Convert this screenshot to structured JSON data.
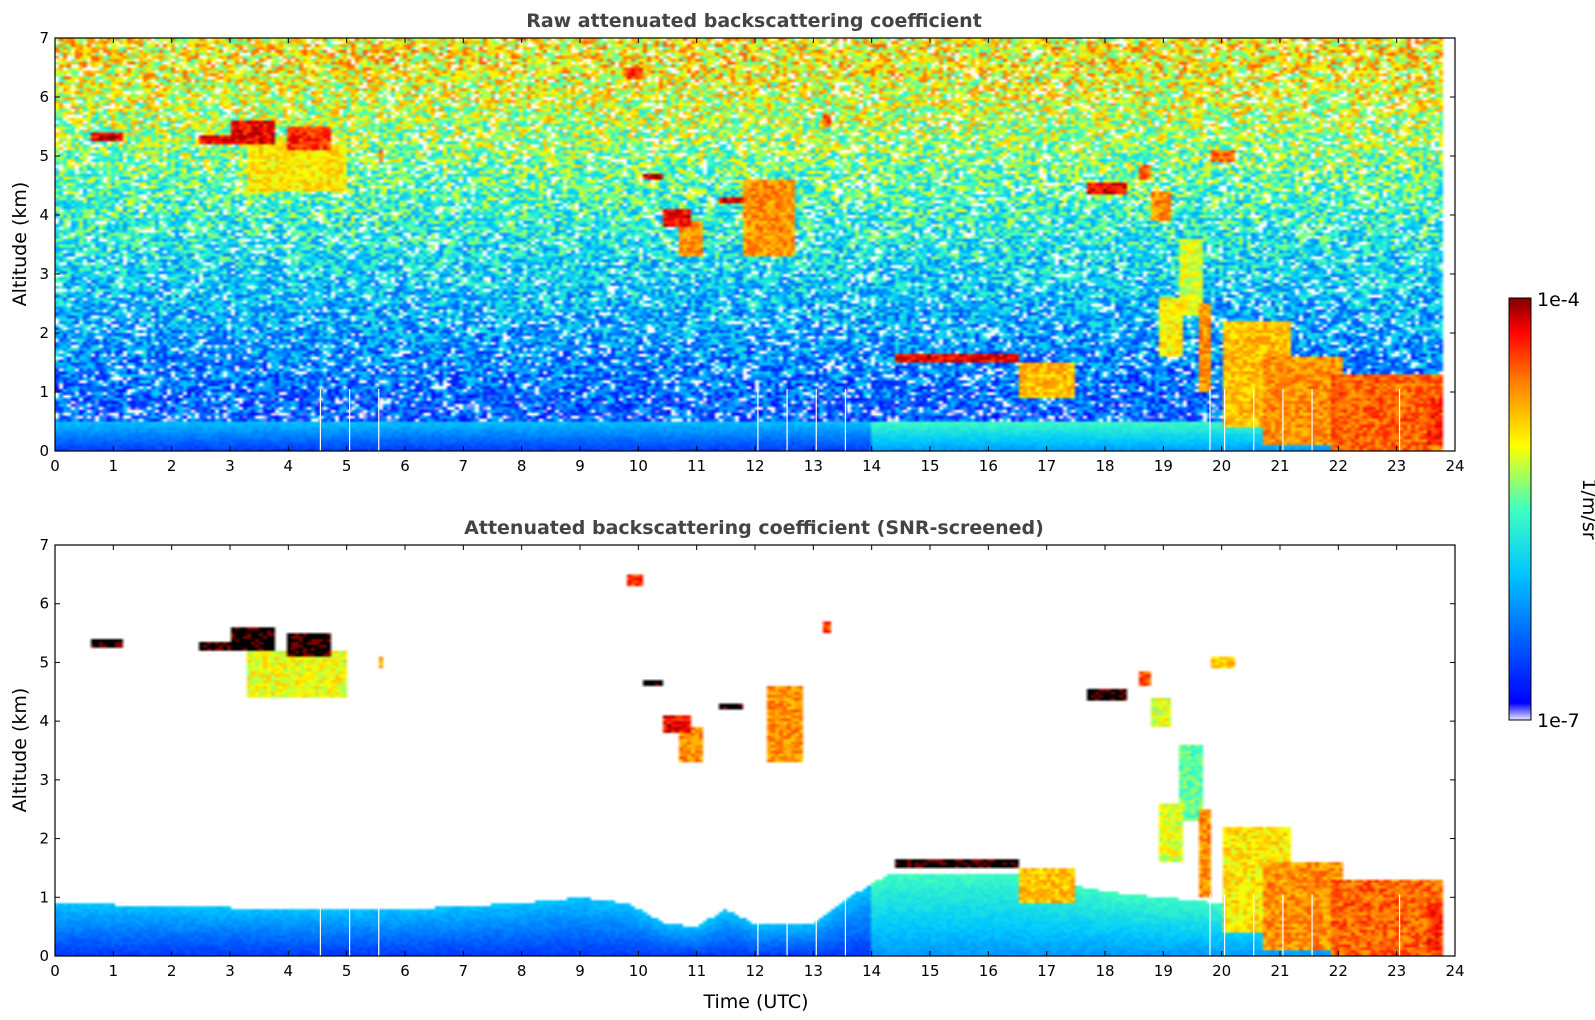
{
  "chart_data": [
    {
      "type": "heatmap",
      "title": "Raw attenuated backscattering coefficient",
      "xlabel": "",
      "ylabel": "Altitude (km)",
      "xlim": [
        0,
        24
      ],
      "ylim": [
        0,
        7
      ],
      "xticks": [
        "0",
        "1",
        "2",
        "3",
        "4",
        "5",
        "6",
        "7",
        "8",
        "9",
        "10",
        "11",
        "12",
        "13",
        "14",
        "15",
        "16",
        "17",
        "18",
        "19",
        "20",
        "21",
        "22",
        "23",
        "24"
      ],
      "yticks": [
        "0",
        "1",
        "2",
        "3",
        "4",
        "5",
        "6",
        "7"
      ],
      "data_ends_x": 23.8,
      "noise": true,
      "boundary_layer_top_km": 0.5,
      "gap_lines_x": [
        4.55,
        5.05,
        5.55,
        12.05,
        12.55,
        13.05,
        13.55,
        19.8,
        20.05,
        20.55,
        21.05,
        21.55,
        23.05
      ],
      "features": [
        {
          "x": [
            0.6,
            1.2
          ],
          "y": [
            5.25,
            5.4
          ],
          "level": 1.0
        },
        {
          "x": [
            2.5,
            3.2
          ],
          "y": [
            5.2,
            5.35
          ],
          "level": 1.0
        },
        {
          "x": [
            3.0,
            3.8
          ],
          "y": [
            5.2,
            5.6
          ],
          "level": 1.0
        },
        {
          "x": [
            4.0,
            4.7
          ],
          "y": [
            5.1,
            5.5
          ],
          "level": 0.95
        },
        {
          "x": [
            3.3,
            5.0
          ],
          "y": [
            4.4,
            5.2
          ],
          "level": 0.75
        },
        {
          "x": [
            5.55,
            5.65
          ],
          "y": [
            4.9,
            5.1
          ],
          "level": 0.9
        },
        {
          "x": [
            9.8,
            10.1
          ],
          "y": [
            6.3,
            6.5
          ],
          "level": 0.95
        },
        {
          "x": [
            10.05,
            10.45
          ],
          "y": [
            4.6,
            4.7
          ],
          "level": 1.0
        },
        {
          "x": [
            10.4,
            10.9
          ],
          "y": [
            3.8,
            4.1
          ],
          "level": 1.0
        },
        {
          "x": [
            10.7,
            11.1
          ],
          "y": [
            3.3,
            3.9
          ],
          "level": 0.85
        },
        {
          "x": [
            11.4,
            11.8
          ],
          "y": [
            4.2,
            4.3
          ],
          "level": 1.0
        },
        {
          "x": [
            11.8,
            12.7
          ],
          "y": [
            3.3,
            4.6
          ],
          "level": 0.85
        },
        {
          "x": [
            13.2,
            13.3
          ],
          "y": [
            5.5,
            5.7
          ],
          "level": 0.95
        },
        {
          "x": [
            14.4,
            16.5
          ],
          "y": [
            1.5,
            1.65
          ],
          "level": 1.0
        },
        {
          "x": [
            16.5,
            17.5
          ],
          "y": [
            0.9,
            1.5
          ],
          "level": 0.8
        },
        {
          "x": [
            17.7,
            18.4
          ],
          "y": [
            4.35,
            4.55
          ],
          "level": 1.0
        },
        {
          "x": [
            18.6,
            18.8
          ],
          "y": [
            4.6,
            4.85
          ],
          "level": 0.9
        },
        {
          "x": [
            18.8,
            19.1
          ],
          "y": [
            3.9,
            4.4
          ],
          "level": 0.85
        },
        {
          "x": [
            18.95,
            19.35
          ],
          "y": [
            1.6,
            2.6
          ],
          "level": 0.75
        },
        {
          "x": [
            19.3,
            19.7
          ],
          "y": [
            2.3,
            3.6
          ],
          "level": 0.7
        },
        {
          "x": [
            19.6,
            19.85
          ],
          "y": [
            1.0,
            2.5
          ],
          "level": 0.85
        },
        {
          "x": [
            19.85,
            20.2
          ],
          "y": [
            4.9,
            5.1
          ],
          "level": 0.9
        },
        {
          "x": [
            20.0,
            21.2
          ],
          "y": [
            0.4,
            2.2
          ],
          "level": 0.8
        },
        {
          "x": [
            20.7,
            22.1
          ],
          "y": [
            0.1,
            1.6
          ],
          "level": 0.85
        },
        {
          "x": [
            21.9,
            23.8
          ],
          "y": [
            0.0,
            1.3
          ],
          "level": 0.9
        },
        {
          "x": [
            23.5,
            23.8
          ],
          "y": [
            0.1,
            0.9
          ],
          "level": 0.95
        }
      ]
    },
    {
      "type": "heatmap",
      "title": "Attenuated backscattering coefficient (SNR-screened)",
      "xlabel": "Time (UTC)",
      "ylabel": "Altitude (km)",
      "xlim": [
        0,
        24
      ],
      "ylim": [
        0,
        7
      ],
      "xticks": [
        "0",
        "1",
        "2",
        "3",
        "4",
        "5",
        "6",
        "7",
        "8",
        "9",
        "10",
        "11",
        "12",
        "13",
        "14",
        "15",
        "16",
        "17",
        "18",
        "19",
        "20",
        "21",
        "22",
        "23",
        "24"
      ],
      "yticks": [
        "0",
        "1",
        "2",
        "3",
        "4",
        "5",
        "6",
        "7"
      ],
      "data_ends_x": 23.8,
      "noise": false,
      "boundary_layer_top_km": [
        [
          0,
          0.9
        ],
        [
          2.0,
          0.85
        ],
        [
          4.0,
          0.8
        ],
        [
          6.0,
          0.8
        ],
        [
          8.0,
          0.9
        ],
        [
          9.0,
          1.0
        ],
        [
          9.8,
          0.9
        ],
        [
          10.5,
          0.55
        ],
        [
          11.0,
          0.5
        ],
        [
          11.5,
          0.8
        ],
        [
          12.0,
          0.55
        ],
        [
          13.0,
          0.55
        ],
        [
          13.6,
          1.0
        ],
        [
          14.3,
          1.4
        ],
        [
          16.5,
          1.4
        ],
        [
          18.0,
          1.1
        ],
        [
          19.0,
          1.0
        ],
        [
          20.0,
          0.9
        ],
        [
          23.8,
          0.8
        ]
      ],
      "gap_lines_x": [
        4.55,
        5.05,
        5.55,
        12.05,
        12.55,
        13.05,
        13.55,
        19.8,
        20.05,
        20.55,
        21.05,
        21.55,
        23.05
      ],
      "features": [
        {
          "x": [
            0.6,
            1.2
          ],
          "y": [
            5.25,
            5.4
          ],
          "level": 1.2
        },
        {
          "x": [
            2.5,
            3.2
          ],
          "y": [
            5.2,
            5.35
          ],
          "level": 1.2
        },
        {
          "x": [
            3.0,
            3.8
          ],
          "y": [
            5.2,
            5.6
          ],
          "level": 1.2
        },
        {
          "x": [
            4.0,
            4.7
          ],
          "y": [
            5.1,
            5.5
          ],
          "level": 1.2
        },
        {
          "x": [
            3.3,
            5.0
          ],
          "y": [
            4.4,
            5.2
          ],
          "level": 0.72
        },
        {
          "x": [
            5.55,
            5.65
          ],
          "y": [
            4.9,
            5.1
          ],
          "level": 0.8
        },
        {
          "x": [
            9.8,
            10.1
          ],
          "y": [
            6.3,
            6.5
          ],
          "level": 0.95
        },
        {
          "x": [
            10.05,
            10.45
          ],
          "y": [
            4.6,
            4.7
          ],
          "level": 1.2
        },
        {
          "x": [
            10.4,
            10.9
          ],
          "y": [
            3.8,
            4.1
          ],
          "level": 1.0
        },
        {
          "x": [
            10.7,
            11.1
          ],
          "y": [
            3.3,
            3.9
          ],
          "level": 0.85
        },
        {
          "x": [
            11.4,
            11.8
          ],
          "y": [
            4.2,
            4.3
          ],
          "level": 1.2
        },
        {
          "x": [
            12.2,
            12.8
          ],
          "y": [
            3.3,
            4.6
          ],
          "level": 0.85
        },
        {
          "x": [
            13.2,
            13.3
          ],
          "y": [
            5.5,
            5.7
          ],
          "level": 0.95
        },
        {
          "x": [
            14.4,
            16.5
          ],
          "y": [
            1.5,
            1.65
          ],
          "level": 1.2
        },
        {
          "x": [
            16.5,
            17.5
          ],
          "y": [
            0.9,
            1.5
          ],
          "level": 0.8
        },
        {
          "x": [
            17.7,
            18.4
          ],
          "y": [
            4.35,
            4.55
          ],
          "level": 1.2
        },
        {
          "x": [
            18.6,
            18.8
          ],
          "y": [
            4.6,
            4.85
          ],
          "level": 0.9
        },
        {
          "x": [
            18.8,
            19.1
          ],
          "y": [
            3.9,
            4.4
          ],
          "level": 0.7
        },
        {
          "x": [
            18.95,
            19.35
          ],
          "y": [
            1.6,
            2.6
          ],
          "level": 0.7
        },
        {
          "x": [
            19.3,
            19.7
          ],
          "y": [
            2.3,
            3.6
          ],
          "level": 0.6
        },
        {
          "x": [
            19.6,
            19.85
          ],
          "y": [
            1.0,
            2.5
          ],
          "level": 0.85
        },
        {
          "x": [
            19.85,
            20.2
          ],
          "y": [
            4.9,
            5.1
          ],
          "level": 0.8
        },
        {
          "x": [
            20.0,
            21.2
          ],
          "y": [
            0.4,
            2.2
          ],
          "level": 0.75
        },
        {
          "x": [
            20.7,
            22.1
          ],
          "y": [
            0.1,
            1.6
          ],
          "level": 0.85
        },
        {
          "x": [
            21.9,
            23.8
          ],
          "y": [
            0.0,
            1.3
          ],
          "level": 0.9
        },
        {
          "x": [
            23.5,
            23.8
          ],
          "y": [
            0.1,
            0.9
          ],
          "level": 0.95
        }
      ]
    }
  ],
  "colorbar": {
    "label": "1/m/sr",
    "max_label": "1e-4",
    "min_label": "1e-7",
    "colormap": "jet",
    "colors": [
      "#e8e8ff",
      "#0000ff",
      "#00c8ff",
      "#40ffbf",
      "#ffff00",
      "#ff8000",
      "#ff0000",
      "#800000"
    ]
  }
}
